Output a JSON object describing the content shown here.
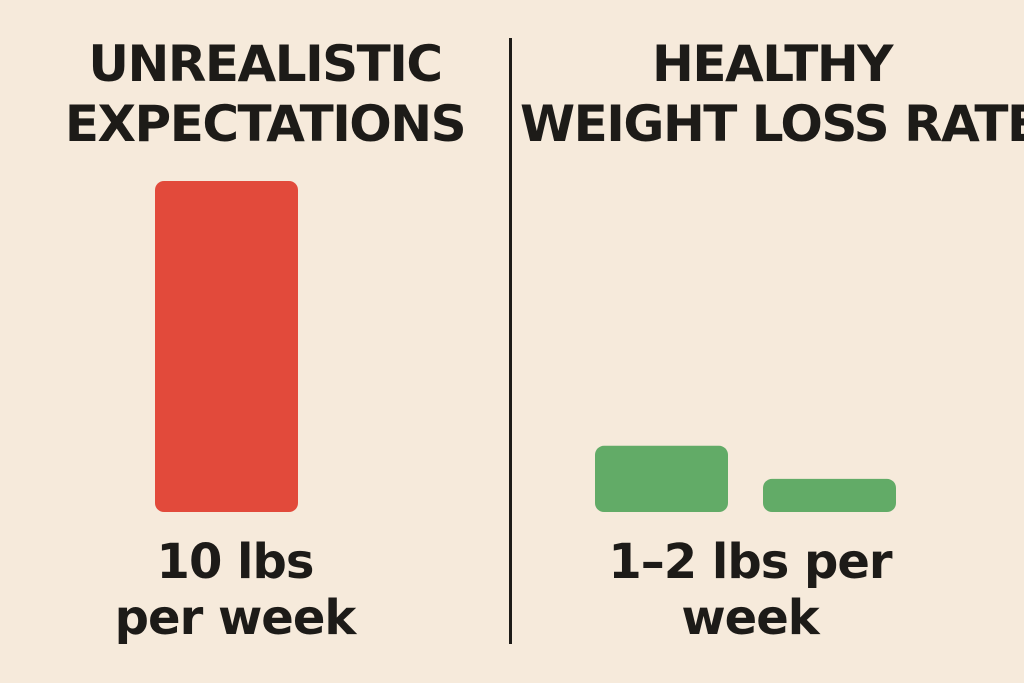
{
  "chart_data": [
    {
      "type": "bar",
      "title_lines": [
        "UNREALISTIC",
        "EXPECTATIONS"
      ],
      "caption_lines": [
        "10 lbs",
        "per week"
      ],
      "bars": [
        {
          "value": 10,
          "color": "#e24a3b"
        }
      ],
      "ylim": [
        0,
        10
      ]
    },
    {
      "type": "bar",
      "title_lines": [
        "HEALTHY",
        "WEIGHT LOSS RATES"
      ],
      "caption_lines": [
        "1–2 lbs per",
        "week"
      ],
      "bars": [
        {
          "value": 2,
          "color": "#62ab67"
        },
        {
          "value": 1,
          "color": "#62ab67"
        }
      ],
      "ylim": [
        0,
        10
      ]
    }
  ],
  "colors": {
    "background": "#f6eadb",
    "text": "#1d1b18",
    "unrealistic_bar": "#e24a3b",
    "healthy_bar": "#62ab67"
  }
}
